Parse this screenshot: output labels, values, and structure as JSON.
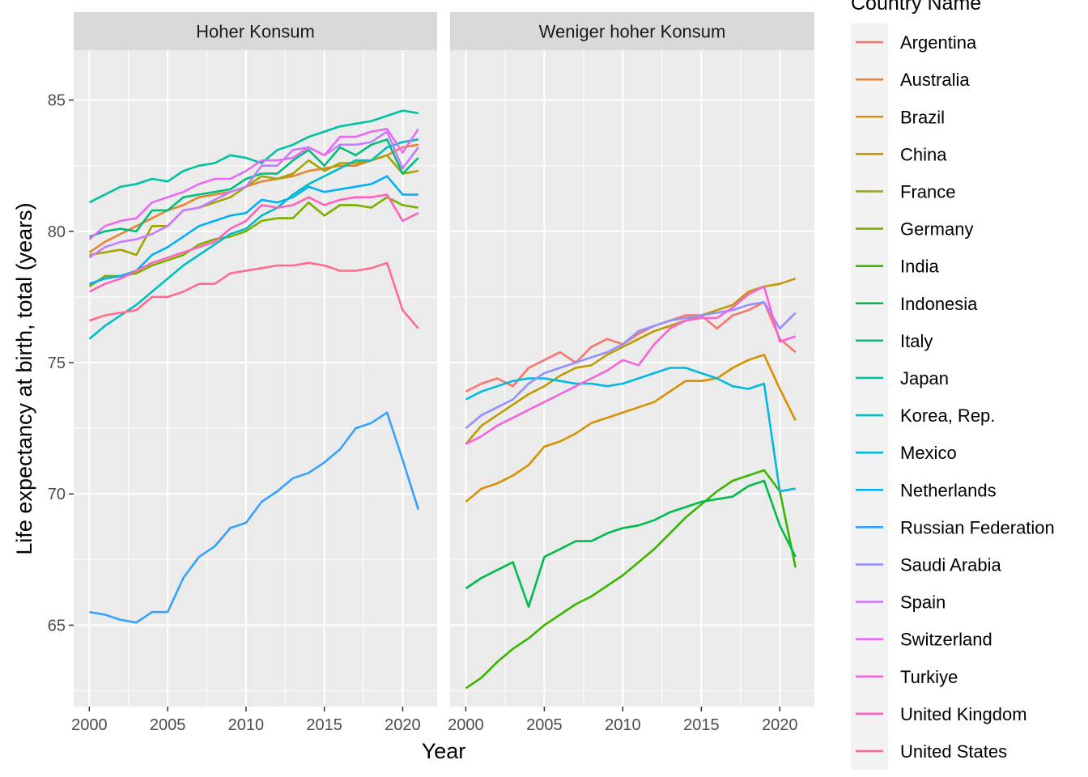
{
  "chart_data": {
    "type": "line",
    "xlabel": "Year",
    "ylabel": "Life expectancy at birth, total (years)",
    "xlim": [
      1999,
      2022.2
    ],
    "ylim": [
      61.9,
      86.9
    ],
    "x_ticks": [
      2000,
      2005,
      2010,
      2015,
      2020
    ],
    "y_ticks": [
      65,
      70,
      75,
      80,
      85
    ],
    "grid": true,
    "legend": {
      "title": "Country Name",
      "position": "right",
      "entries": [
        {
          "name": "Argentina",
          "color": "#F8766D"
        },
        {
          "name": "Australia",
          "color": "#EA8331"
        },
        {
          "name": "Brazil",
          "color": "#D89000"
        },
        {
          "name": "China",
          "color": "#C09B00"
        },
        {
          "name": "France",
          "color": "#A3A500"
        },
        {
          "name": "Germany",
          "color": "#7CAE00"
        },
        {
          "name": "India",
          "color": "#39B600"
        },
        {
          "name": "Indonesia",
          "color": "#00BB4E"
        },
        {
          "name": "Italy",
          "color": "#00BF7D"
        },
        {
          "name": "Japan",
          "color": "#00C1A3"
        },
        {
          "name": "Korea, Rep.",
          "color": "#00BFC4"
        },
        {
          "name": "Mexico",
          "color": "#00BAE0"
        },
        {
          "name": "Netherlands",
          "color": "#00B0F6"
        },
        {
          "name": "Russian Federation",
          "color": "#35A2FF"
        },
        {
          "name": "Saudi Arabia",
          "color": "#9590FF"
        },
        {
          "name": "Spain",
          "color": "#C77CFF"
        },
        {
          "name": "Switzerland",
          "color": "#E76BF3"
        },
        {
          "name": "Turkiye",
          "color": "#FA62DB"
        },
        {
          "name": "United Kingdom",
          "color": "#FF62BC"
        },
        {
          "name": "United States",
          "color": "#FF6C91"
        }
      ]
    },
    "x": [
      2000,
      2001,
      2002,
      2003,
      2004,
      2005,
      2006,
      2007,
      2008,
      2009,
      2010,
      2011,
      2012,
      2013,
      2014,
      2015,
      2016,
      2017,
      2018,
      2019,
      2020,
      2021
    ],
    "panels": [
      {
        "title": "Hoher Konsum",
        "series": [
          {
            "name": "Australia",
            "values": [
              79.2,
              79.6,
              79.9,
              80.2,
              80.5,
              80.8,
              81.0,
              81.3,
              81.4,
              81.5,
              81.7,
              81.9,
              82.0,
              82.1,
              82.3,
              82.4,
              82.5,
              82.5,
              82.7,
              82.9,
              83.2,
              83.3
            ]
          },
          {
            "name": "France",
            "values": [
              79.1,
              79.2,
              79.3,
              79.1,
              80.2,
              80.2,
              80.8,
              80.9,
              81.1,
              81.3,
              81.7,
              82.1,
              82.0,
              82.2,
              82.7,
              82.3,
              82.6,
              82.6,
              82.7,
              82.9,
              82.2,
              82.3
            ]
          },
          {
            "name": "Germany",
            "values": [
              77.9,
              78.3,
              78.3,
              78.4,
              78.7,
              78.9,
              79.1,
              79.5,
              79.7,
              79.8,
              80.0,
              80.4,
              80.5,
              80.5,
              81.1,
              80.6,
              81.0,
              81.0,
              80.9,
              81.3,
              81.0,
              80.9
            ]
          },
          {
            "name": "Italy",
            "values": [
              79.8,
              80.0,
              80.1,
              80.0,
              80.8,
              80.8,
              81.3,
              81.4,
              81.5,
              81.6,
              82.0,
              82.2,
              82.2,
              82.7,
              83.1,
              82.5,
              83.2,
              82.9,
              83.3,
              83.5,
              82.2,
              82.8
            ]
          },
          {
            "name": "Japan",
            "values": [
              81.1,
              81.4,
              81.7,
              81.8,
              82.0,
              81.9,
              82.3,
              82.5,
              82.6,
              82.9,
              82.8,
              82.6,
              83.1,
              83.3,
              83.6,
              83.8,
              84.0,
              84.1,
              84.2,
              84.4,
              84.6,
              84.5
            ]
          },
          {
            "name": "Korea, Rep.",
            "values": [
              75.9,
              76.4,
              76.8,
              77.2,
              77.7,
              78.2,
              78.7,
              79.1,
              79.5,
              79.9,
              80.1,
              80.6,
              80.9,
              81.4,
              81.8,
              82.1,
              82.4,
              82.7,
              82.7,
              83.2,
              83.4,
              83.5
            ]
          },
          {
            "name": "Netherlands",
            "values": [
              78.0,
              78.2,
              78.3,
              78.5,
              79.1,
              79.4,
              79.8,
              80.2,
              80.4,
              80.6,
              80.7,
              81.2,
              81.1,
              81.3,
              81.7,
              81.5,
              81.6,
              81.7,
              81.8,
              82.1,
              81.4,
              81.4
            ]
          },
          {
            "name": "Russian Federation",
            "values": [
              65.5,
              65.4,
              65.2,
              65.1,
              65.5,
              65.5,
              66.8,
              67.6,
              68.0,
              68.7,
              68.9,
              69.7,
              70.1,
              70.6,
              70.8,
              71.2,
              71.7,
              72.5,
              72.7,
              73.1,
              71.3,
              69.4
            ]
          },
          {
            "name": "Spain",
            "values": [
              79.0,
              79.4,
              79.6,
              79.7,
              79.9,
              80.2,
              80.8,
              80.9,
              81.2,
              81.5,
              81.7,
              82.5,
              82.5,
              83.1,
              83.2,
              82.9,
              83.3,
              83.3,
              83.4,
              83.8,
              82.4,
              83.2
            ]
          },
          {
            "name": "Switzerland",
            "values": [
              79.7,
              80.2,
              80.4,
              80.5,
              81.1,
              81.3,
              81.5,
              81.8,
              82.0,
              82.0,
              82.3,
              82.7,
              82.7,
              82.8,
              83.2,
              82.9,
              83.6,
              83.6,
              83.8,
              83.9,
              83.0,
              83.9
            ]
          },
          {
            "name": "United Kingdom",
            "values": [
              77.7,
              78.0,
              78.2,
              78.5,
              78.8,
              79.0,
              79.2,
              79.4,
              79.6,
              80.1,
              80.4,
              81.0,
              80.9,
              81.0,
              81.3,
              81.0,
              81.2,
              81.3,
              81.3,
              81.4,
              80.4,
              80.7
            ]
          },
          {
            "name": "United States",
            "values": [
              76.6,
              76.8,
              76.9,
              77.0,
              77.5,
              77.5,
              77.7,
              78.0,
              78.0,
              78.4,
              78.5,
              78.6,
              78.7,
              78.7,
              78.8,
              78.7,
              78.5,
              78.5,
              78.6,
              78.8,
              77.0,
              76.3
            ]
          }
        ]
      },
      {
        "title": "Weniger hoher Konsum",
        "series": [
          {
            "name": "Argentina",
            "values": [
              73.9,
              74.2,
              74.4,
              74.1,
              74.8,
              75.1,
              75.4,
              75.0,
              75.6,
              75.9,
              75.7,
              76.1,
              76.4,
              76.6,
              76.8,
              76.8,
              76.3,
              76.8,
              77.0,
              77.3,
              75.9,
              75.4
            ]
          },
          {
            "name": "Brazil",
            "values": [
              69.7,
              70.2,
              70.4,
              70.7,
              71.1,
              71.8,
              72.0,
              72.3,
              72.7,
              72.9,
              73.1,
              73.3,
              73.5,
              73.9,
              74.3,
              74.3,
              74.4,
              74.8,
              75.1,
              75.3,
              74.0,
              72.8
            ]
          },
          {
            "name": "China",
            "values": [
              71.9,
              72.6,
              73.0,
              73.4,
              73.8,
              74.1,
              74.5,
              74.8,
              74.9,
              75.3,
              75.6,
              75.9,
              76.2,
              76.4,
              76.6,
              76.8,
              77.0,
              77.2,
              77.7,
              77.9,
              78.0,
              78.2
            ]
          },
          {
            "name": "India",
            "values": [
              62.6,
              63.0,
              63.6,
              64.1,
              64.5,
              65.0,
              65.4,
              65.8,
              66.1,
              66.5,
              66.9,
              67.4,
              67.9,
              68.5,
              69.1,
              69.6,
              70.1,
              70.5,
              70.7,
              70.9,
              70.1,
              67.2
            ]
          },
          {
            "name": "Indonesia",
            "values": [
              66.4,
              66.8,
              67.1,
              67.4,
              65.7,
              67.6,
              67.9,
              68.2,
              68.2,
              68.5,
              68.7,
              68.8,
              69.0,
              69.3,
              69.5,
              69.7,
              69.8,
              69.9,
              70.3,
              70.5,
              68.8,
              67.6
            ]
          },
          {
            "name": "Mexico",
            "values": [
              73.6,
              73.9,
              74.1,
              74.3,
              74.4,
              74.4,
              74.3,
              74.2,
              74.2,
              74.1,
              74.2,
              74.4,
              74.6,
              74.8,
              74.8,
              74.6,
              74.4,
              74.1,
              74.0,
              74.2,
              70.1,
              70.2
            ]
          },
          {
            "name": "Saudi Arabia",
            "values": [
              72.5,
              73.0,
              73.3,
              73.6,
              74.2,
              74.6,
              74.8,
              75.0,
              75.2,
              75.4,
              75.7,
              76.2,
              76.4,
              76.6,
              76.7,
              76.8,
              76.9,
              77.0,
              77.2,
              77.3,
              76.3,
              76.9
            ]
          },
          {
            "name": "Turkiye",
            "values": [
              71.9,
              72.2,
              72.6,
              72.9,
              73.2,
              73.5,
              73.8,
              74.1,
              74.4,
              74.7,
              75.1,
              74.9,
              75.7,
              76.3,
              76.6,
              76.7,
              76.7,
              77.1,
              77.6,
              77.9,
              75.8,
              76.0
            ]
          }
        ]
      }
    ]
  }
}
